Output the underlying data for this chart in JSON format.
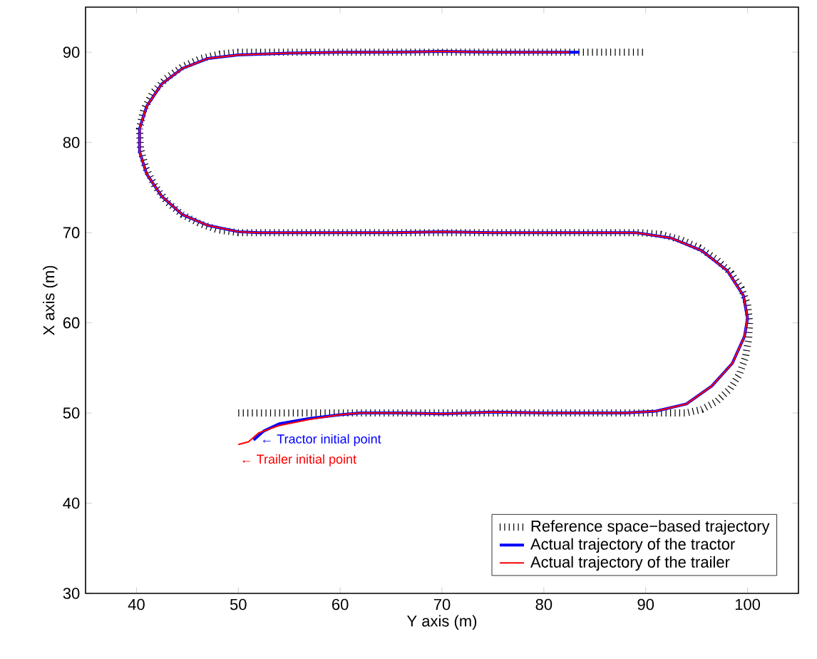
{
  "chart_data": {
    "type": "line",
    "xlabel": "Y axis (m)",
    "ylabel": "X axis (m)",
    "xlim": [
      35,
      105
    ],
    "ylim": [
      30,
      95
    ],
    "xticks": [
      40,
      50,
      60,
      70,
      80,
      90,
      100
    ],
    "yticks": [
      30,
      40,
      50,
      60,
      70,
      80,
      90
    ],
    "grid": false,
    "legend": "bottom right",
    "series": [
      {
        "name": "Reference space−based trajectory",
        "color": "#000000",
        "line_style": "dotted",
        "x": [
          50,
          52,
          54,
          56,
          58,
          60,
          62,
          64,
          66,
          68,
          70,
          72,
          74,
          76,
          78,
          80,
          82,
          84,
          86,
          88,
          90,
          92,
          94,
          95.5,
          97,
          98.3,
          99.2,
          99.8,
          100.1,
          100.2,
          100,
          99.4,
          98.4,
          97,
          95.3,
          93.5,
          91.5,
          89.5,
          88,
          86,
          84,
          82,
          80,
          78,
          76,
          74,
          72,
          70,
          68,
          66,
          64,
          62,
          60,
          58,
          56,
          54,
          52,
          50,
          48,
          46.2,
          44.5,
          43,
          41.8,
          40.9,
          40.4,
          40.3,
          40.7,
          41.6,
          42.9,
          44.5,
          46.3,
          48.2,
          50,
          52,
          54,
          56,
          58,
          60,
          62,
          64,
          66,
          68,
          70,
          72,
          74,
          76,
          78,
          80,
          82,
          84,
          86,
          88,
          90
        ],
        "values": [
          50,
          50,
          50,
          50,
          50,
          50,
          50,
          50,
          50,
          50,
          50,
          50,
          50,
          50,
          50,
          50,
          50,
          50,
          50,
          50,
          50,
          50,
          50,
          50.4,
          51.3,
          52.7,
          54.3,
          56.2,
          58.2,
          60,
          62,
          63.8,
          65.5,
          67,
          68.3,
          69.2,
          69.8,
          70,
          70,
          70,
          70,
          70,
          70,
          70,
          70,
          70,
          70,
          70,
          70,
          70,
          70,
          70,
          70,
          70,
          70,
          70,
          70,
          70,
          70.3,
          71,
          72,
          73.4,
          75.2,
          77.2,
          79.3,
          81.5,
          83.6,
          85.5,
          87.1,
          88.4,
          89.3,
          89.8,
          90,
          90,
          90,
          90,
          90,
          90,
          90,
          90,
          90,
          90,
          90,
          90,
          90,
          90,
          90,
          90,
          90,
          90,
          90,
          90,
          90
        ]
      },
      {
        "name": "Actual trajectory of the tractor",
        "color": "#0000ff",
        "x": [
          51.5,
          52.5,
          54,
          57,
          60,
          62,
          66,
          70,
          75,
          80,
          85,
          88,
          91,
          94,
          96.5,
          98.5,
          99.7,
          100,
          99.6,
          98,
          95.5,
          92.5,
          89,
          85,
          78.5,
          75,
          70,
          65,
          61.5,
          56,
          52,
          50,
          47,
          44.5,
          42.5,
          41,
          40.3,
          40.3,
          41,
          42.5,
          44.5,
          47,
          50,
          55,
          60,
          65,
          70,
          75,
          78.5,
          83.5
        ],
        "values": [
          47,
          48,
          48.8,
          49.4,
          49.8,
          50,
          50,
          49.9,
          50.1,
          50,
          50,
          50,
          50.2,
          51,
          53,
          55.5,
          58.5,
          60.5,
          63,
          65.8,
          68,
          69.4,
          70,
          70,
          70,
          70,
          70.1,
          70,
          70,
          70,
          70,
          70.1,
          70.8,
          72,
          74,
          76.5,
          79,
          81.5,
          84,
          86.5,
          88.2,
          89.3,
          89.7,
          89.9,
          90,
          90,
          90.1,
          90,
          90,
          90
        ]
      },
      {
        "name": "Actual trajectory of the trailer",
        "color": "#ff0000",
        "x": [
          50,
          51,
          52,
          54,
          57,
          60,
          62,
          66,
          70,
          75,
          80,
          85,
          88,
          91,
          94,
          96.5,
          98.5,
          99.7,
          100,
          99.6,
          98,
          95.5,
          92.5,
          89,
          85,
          78.5,
          75,
          70,
          65,
          61.5,
          56,
          52,
          50,
          47,
          44.5,
          42.5,
          41,
          40.3,
          40.3,
          41,
          42.5,
          44.5,
          47,
          50,
          55,
          60,
          65,
          70,
          75,
          78.5,
          82.5
        ],
        "values": [
          46.5,
          46.8,
          47.8,
          48.6,
          49.3,
          49.8,
          50,
          50,
          49.9,
          50.1,
          50,
          50,
          50,
          50.2,
          51,
          53,
          55.5,
          58.5,
          60.5,
          63,
          65.8,
          68,
          69.4,
          70,
          70,
          70,
          70,
          70.1,
          70,
          70,
          70,
          70,
          70.1,
          70.8,
          72,
          74,
          76.5,
          79,
          81.5,
          84,
          86.5,
          88.2,
          89.3,
          89.7,
          89.9,
          90,
          90,
          90.1,
          90,
          90,
          90
        ]
      }
    ],
    "annotations": [
      {
        "text": "← Tractor initial point",
        "x": 52,
        "y": 47
      },
      {
        "text": "← Trailer initial point",
        "x": 50,
        "y": 46.5
      }
    ]
  }
}
